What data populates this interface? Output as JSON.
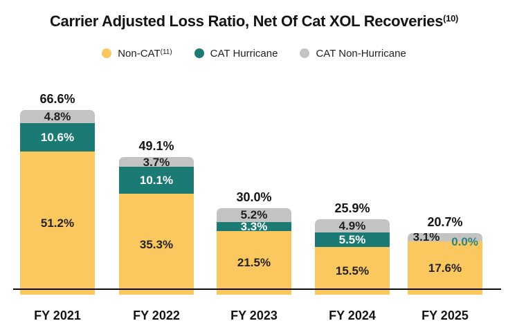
{
  "title": {
    "text": "Carrier Adjusted Loss Ratio, Net Of Cat XOL Recoveries",
    "superscript": "(10)"
  },
  "legend": {
    "items": [
      {
        "label": "Non-CAT",
        "superscript": "(11)",
        "color": "#FBC860"
      },
      {
        "label": "CAT Hurricane",
        "superscript": "",
        "color": "#1C7A74"
      },
      {
        "label": "CAT Non-Hurricane",
        "superscript": "",
        "color": "#C3C3C3"
      }
    ]
  },
  "chart_data": {
    "type": "bar",
    "stacked": true,
    "title": "Carrier Adjusted Loss Ratio, Net Of Cat XOL Recoveries(10)",
    "categories": [
      "FY 2021",
      "FY 2022",
      "FY 2023",
      "FY 2024",
      "FY 2025"
    ],
    "series": [
      {
        "name": "Non-CAT",
        "color": "#FBC860",
        "label_color": "#262220",
        "values": [
          51.2,
          35.3,
          21.5,
          15.5,
          17.6
        ]
      },
      {
        "name": "CAT Hurricane",
        "color": "#1C7A74",
        "label_color": "#FFFFFF",
        "zero_label_color": "#2F837B",
        "values": [
          10.6,
          10.1,
          3.3,
          5.5,
          0.0
        ]
      },
      {
        "name": "CAT Non-Hurricane",
        "color": "#C3C3C3",
        "label_color": "#1F1F1F",
        "values": [
          4.8,
          3.7,
          5.2,
          4.9,
          3.1
        ]
      }
    ],
    "totals": [
      66.6,
      49.1,
      30.0,
      25.9,
      20.7
    ],
    "value_suffix": "%",
    "ylim": [
      0,
      70
    ],
    "grid": false,
    "legend_position": "top",
    "xlabel": "",
    "ylabel": ""
  }
}
